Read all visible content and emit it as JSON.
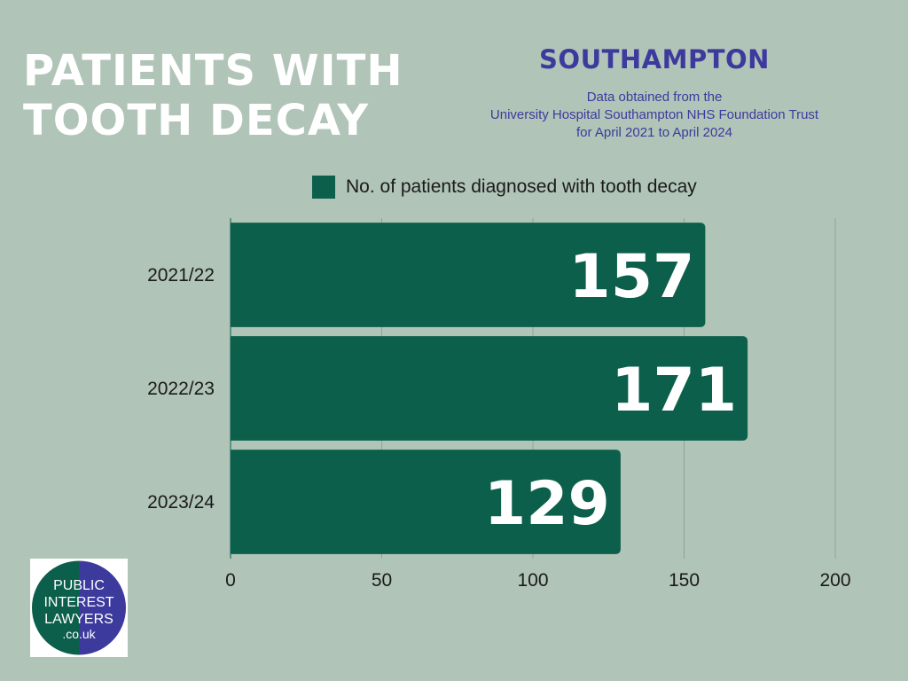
{
  "header": {
    "title_lines": [
      "PATIENTS WITH",
      "TOOTH DECAY"
    ],
    "city": "SOUTHAMPTON",
    "source_lines": [
      "Data obtained from the",
      "University Hospital Southampton NHS Foundation Trust",
      "for April 2021 to April 2024"
    ]
  },
  "logo": {
    "lines": [
      "PUBLIC",
      "INTEREST",
      "LAWYERS",
      ".co.uk"
    ],
    "colors": {
      "left": "#0c5f4b",
      "right": "#3d3a9e"
    }
  },
  "chart_data": {
    "type": "bar",
    "orientation": "horizontal",
    "categories": [
      "2021/22",
      "2022/23",
      "2023/24"
    ],
    "series": [
      {
        "name": "No. of patients diagnosed with tooth decay",
        "values": [
          157,
          171,
          129
        ]
      }
    ],
    "xlim": [
      0,
      200
    ],
    "xticks": [
      0,
      50,
      100,
      150,
      200
    ],
    "grid": true,
    "legend_position": "top",
    "bar_color": "#0c5f4b"
  }
}
